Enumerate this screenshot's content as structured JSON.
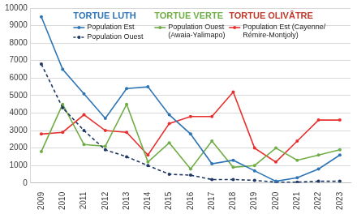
{
  "chart_data": {
    "type": "line",
    "categories": [
      "2009",
      "2010",
      "2011",
      "2012",
      "2013",
      "2014",
      "2015",
      "2016",
      "2017",
      "2018",
      "2019",
      "2020",
      "2021",
      "2022",
      "2023"
    ],
    "series": [
      {
        "name": "Population Est",
        "color": "#2e75b6",
        "line_style": "solid",
        "marker": "circle",
        "values": [
          9500,
          6500,
          5100,
          3700,
          5400,
          5500,
          3900,
          2800,
          1100,
          1300,
          700,
          100,
          300,
          800,
          1600
        ]
      },
      {
        "name": "Population Ouest",
        "color": "#1f3864",
        "line_style": "dashed",
        "marker": "circle",
        "values": [
          6800,
          4300,
          3000,
          1900,
          1500,
          1000,
          500,
          450,
          200,
          200,
          150,
          50,
          50,
          100,
          100
        ]
      },
      {
        "name": "Population Ouest (Awaia-Yalimapo)",
        "color": "#70ad47",
        "line_style": "solid",
        "marker": "circle",
        "values": [
          1800,
          4500,
          2200,
          2100,
          4500,
          1200,
          2300,
          800,
          2400,
          900,
          1000,
          2000,
          1300,
          1600,
          1900
        ]
      },
      {
        "name": "Population Est (Cayenne/ Rémire-Montjoly)",
        "color": "#e8312f",
        "line_style": "solid",
        "marker": "circle",
        "values": [
          2800,
          2900,
          3900,
          3000,
          2900,
          1600,
          3400,
          3800,
          3800,
          5200,
          2000,
          1200,
          2400,
          3600,
          3600
        ]
      }
    ],
    "annotations": [
      {
        "text": "TORTUE LUTH",
        "color": "#2e75b6"
      },
      {
        "text": "TORTUE VERTE",
        "color": "#70ad47"
      },
      {
        "text": "TORTUE OLIVÂTRE",
        "color": "#c0392b"
      }
    ],
    "ylim": [
      0,
      10000
    ],
    "yticks": [
      0,
      1000,
      2000,
      3000,
      4000,
      5000,
      6000,
      7000,
      8000,
      9000,
      10000
    ],
    "grid": true
  }
}
